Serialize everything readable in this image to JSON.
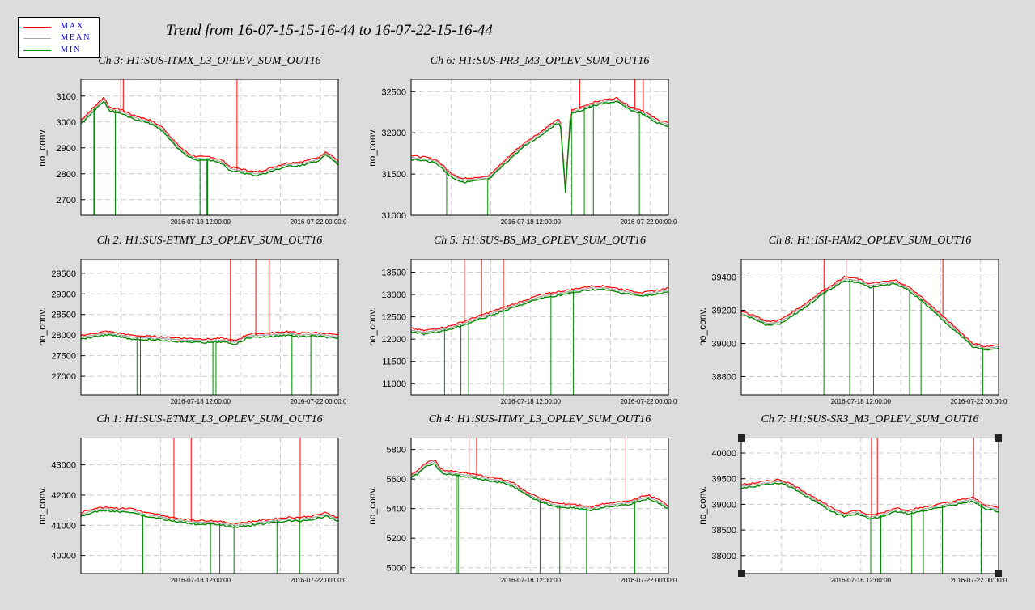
{
  "main_title": "Trend from 16-07-15-15-16-44 to 16-07-22-15-16-44",
  "legend": {
    "items": [
      {
        "label": "MAX",
        "color": "#ff0000"
      },
      {
        "label": "MEAN",
        "color": "#aaaaaa"
      },
      {
        "label": "MIN",
        "color": "#008800"
      }
    ]
  },
  "chart_data": [
    {
      "type": "line",
      "title": "Ch 3: H1:SUS-ITMX_L3_OPLEV_SUM_OUT16",
      "ylabel": "no_conv.",
      "x_ticks": [
        "2016-07-18 12:00:00",
        "2016-07-22 00:00:00"
      ],
      "y_ticks": [
        2700,
        2800,
        2900,
        3000,
        3100
      ],
      "ylim": [
        2640,
        3165
      ],
      "x": [
        0,
        0.04,
        0.06,
        0.09,
        0.11,
        0.16,
        0.2,
        0.27,
        0.32,
        0.35,
        0.38,
        0.42,
        0.45,
        0.48,
        0.5,
        0.55,
        0.58,
        0.63,
        0.68,
        0.72,
        0.75,
        0.8,
        0.86,
        0.9,
        0.93,
        0.95,
        0.98,
        1.0
      ],
      "series": [
        {
          "name": "MEAN",
          "values": [
            3000,
            3040,
            3060,
            3090,
            3050,
            3040,
            3020,
            3000,
            2970,
            2935,
            2900,
            2870,
            2860,
            2858,
            2860,
            2845,
            2820,
            2810,
            2800,
            2810,
            2820,
            2835,
            2840,
            2850,
            2860,
            2880,
            2860,
            2840
          ]
        }
      ]
    },
    {
      "type": "line",
      "title": "Ch 6: H1:SUS-PR3_M3_OPLEV_SUM_OUT16",
      "ylabel": "no_conv.",
      "x_ticks": [
        "2016-07-18 12:00:00",
        "2016-07-22 00:00:00"
      ],
      "y_ticks": [
        31000,
        31500,
        32000,
        32500
      ],
      "ylim": [
        31000,
        32650
      ],
      "x": [
        0,
        0.06,
        0.1,
        0.15,
        0.2,
        0.25,
        0.3,
        0.35,
        0.4,
        0.45,
        0.5,
        0.55,
        0.58,
        0.6,
        0.62,
        0.65,
        0.7,
        0.75,
        0.8,
        0.85,
        0.9,
        0.95,
        1.0
      ],
      "series": [
        {
          "name": "MEAN",
          "values": [
            31700,
            31680,
            31650,
            31500,
            31420,
            31440,
            31450,
            31600,
            31750,
            31880,
            31980,
            32100,
            32150,
            31300,
            32250,
            32280,
            32340,
            32380,
            32400,
            32300,
            32250,
            32150,
            32100
          ]
        }
      ]
    },
    {
      "type": "line",
      "title": "Ch 2: H1:SUS-ETMY_L3_OPLEV_SUM_OUT16",
      "ylabel": "no_conv.",
      "x_ticks": [
        "2016-07-18 12:00:00",
        "2016-07-22 00:00:00"
      ],
      "y_ticks": [
        27000,
        27500,
        28000,
        28500,
        29000,
        29500
      ],
      "ylim": [
        26550,
        29850
      ],
      "x": [
        0,
        0.05,
        0.1,
        0.15,
        0.2,
        0.25,
        0.3,
        0.35,
        0.4,
        0.45,
        0.5,
        0.55,
        0.6,
        0.65,
        0.7,
        0.75,
        0.8,
        0.85,
        0.9,
        0.95,
        1.0
      ],
      "series": [
        {
          "name": "MEAN",
          "values": [
            27950,
            28000,
            28050,
            28000,
            27950,
            27930,
            27920,
            27900,
            27880,
            27870,
            27860,
            27880,
            27820,
            27980,
            28000,
            28010,
            28050,
            28000,
            28020,
            28000,
            27950
          ]
        }
      ]
    },
    {
      "type": "line",
      "title": "Ch 5: H1:SUS-BS_M3_OPLEV_SUM_OUT16",
      "ylabel": "no_conv.",
      "x_ticks": [
        "2016-07-18 12:00:00",
        "2016-07-22 00:00:00"
      ],
      "y_ticks": [
        11000,
        11500,
        12000,
        12500,
        13000,
        13500
      ],
      "ylim": [
        10750,
        13800
      ],
      "x": [
        0,
        0.05,
        0.1,
        0.15,
        0.2,
        0.25,
        0.3,
        0.35,
        0.4,
        0.45,
        0.5,
        0.55,
        0.6,
        0.65,
        0.7,
        0.75,
        0.8,
        0.85,
        0.9,
        0.95,
        1.0
      ],
      "series": [
        {
          "name": "MEAN",
          "values": [
            12200,
            12150,
            12200,
            12250,
            12350,
            12450,
            12550,
            12650,
            12750,
            12850,
            12950,
            13000,
            13050,
            13100,
            13150,
            13150,
            13100,
            13050,
            13000,
            13050,
            13100
          ]
        }
      ]
    },
    {
      "type": "line",
      "title": "Ch 8: H1:ISI-HAM2_OPLEV_SUM_OUT16",
      "ylabel": "no_conv.",
      "x_ticks": [
        "2016-07-18 12:00:00",
        "2016-07-22 00:00:00"
      ],
      "y_ticks": [
        38800,
        39000,
        39200,
        39400
      ],
      "ylim": [
        38690,
        39510
      ],
      "x": [
        0,
        0.05,
        0.1,
        0.15,
        0.2,
        0.25,
        0.3,
        0.35,
        0.4,
        0.45,
        0.5,
        0.55,
        0.6,
        0.65,
        0.7,
        0.75,
        0.8,
        0.85,
        0.9,
        0.95,
        1.0
      ],
      "series": [
        {
          "name": "MEAN",
          "values": [
            39180,
            39160,
            39120,
            39130,
            39180,
            39230,
            39290,
            39340,
            39390,
            39380,
            39350,
            39360,
            39370,
            39330,
            39270,
            39200,
            39130,
            39060,
            38990,
            38970,
            38980
          ]
        }
      ]
    },
    {
      "type": "line",
      "title": "Ch 1: H1:SUS-ETMX_L3_OPLEV_SUM_OUT16",
      "ylabel": "no_conv.",
      "x_ticks": [
        "2016-07-18 12:00:00",
        "2016-07-22 00:00:00"
      ],
      "y_ticks": [
        40000,
        41000,
        42000,
        43000
      ],
      "ylim": [
        39400,
        43900
      ],
      "x": [
        0,
        0.05,
        0.1,
        0.15,
        0.2,
        0.25,
        0.3,
        0.35,
        0.4,
        0.45,
        0.5,
        0.55,
        0.6,
        0.65,
        0.7,
        0.75,
        0.8,
        0.85,
        0.9,
        0.95,
        1.0
      ],
      "series": [
        {
          "name": "MEAN",
          "values": [
            41350,
            41500,
            41550,
            41500,
            41500,
            41350,
            41300,
            41200,
            41150,
            41100,
            41100,
            41050,
            41000,
            41050,
            41100,
            41150,
            41200,
            41200,
            41250,
            41350,
            41200
          ]
        }
      ]
    },
    {
      "type": "line",
      "title": "Ch 4: H1:SUS-ITMY_L3_OPLEV_SUM_OUT16",
      "ylabel": "no_conv.",
      "x_ticks": [
        "2016-07-18 12:00:00",
        "2016-07-22 00:00:00"
      ],
      "y_ticks": [
        5000,
        5200,
        5400,
        5600,
        5800
      ],
      "ylim": [
        4960,
        5880
      ],
      "x": [
        0,
        0.03,
        0.06,
        0.09,
        0.12,
        0.16,
        0.2,
        0.25,
        0.3,
        0.35,
        0.4,
        0.45,
        0.5,
        0.55,
        0.58,
        0.62,
        0.66,
        0.7,
        0.75,
        0.8,
        0.85,
        0.88,
        0.92,
        0.96,
        1.0
      ],
      "series": [
        {
          "name": "MEAN",
          "values": [
            5620,
            5650,
            5700,
            5720,
            5650,
            5640,
            5630,
            5620,
            5600,
            5590,
            5560,
            5500,
            5460,
            5430,
            5420,
            5420,
            5410,
            5400,
            5420,
            5430,
            5440,
            5460,
            5480,
            5450,
            5410
          ]
        }
      ]
    },
    {
      "type": "line",
      "title": "Ch 7: H1:SUS-SR3_M3_OPLEV_SUM_OUT16",
      "ylabel": "no_conv.",
      "x_ticks": [
        "2016-07-18 12:00:00",
        "2016-07-22 00:00:00"
      ],
      "y_ticks": [
        38000,
        38500,
        39000,
        39500,
        40000
      ],
      "ylim": [
        37650,
        40300
      ],
      "x": [
        0,
        0.05,
        0.1,
        0.15,
        0.2,
        0.25,
        0.3,
        0.35,
        0.4,
        0.45,
        0.5,
        0.55,
        0.6,
        0.65,
        0.7,
        0.75,
        0.8,
        0.85,
        0.9,
        0.95,
        1.0
      ],
      "series": [
        {
          "name": "MEAN",
          "values": [
            39350,
            39380,
            39420,
            39450,
            39350,
            39200,
            39050,
            38900,
            38800,
            38850,
            38750,
            38800,
            38900,
            38850,
            38900,
            38950,
            39000,
            39050,
            39100,
            38950,
            38900
          ]
        }
      ]
    }
  ]
}
